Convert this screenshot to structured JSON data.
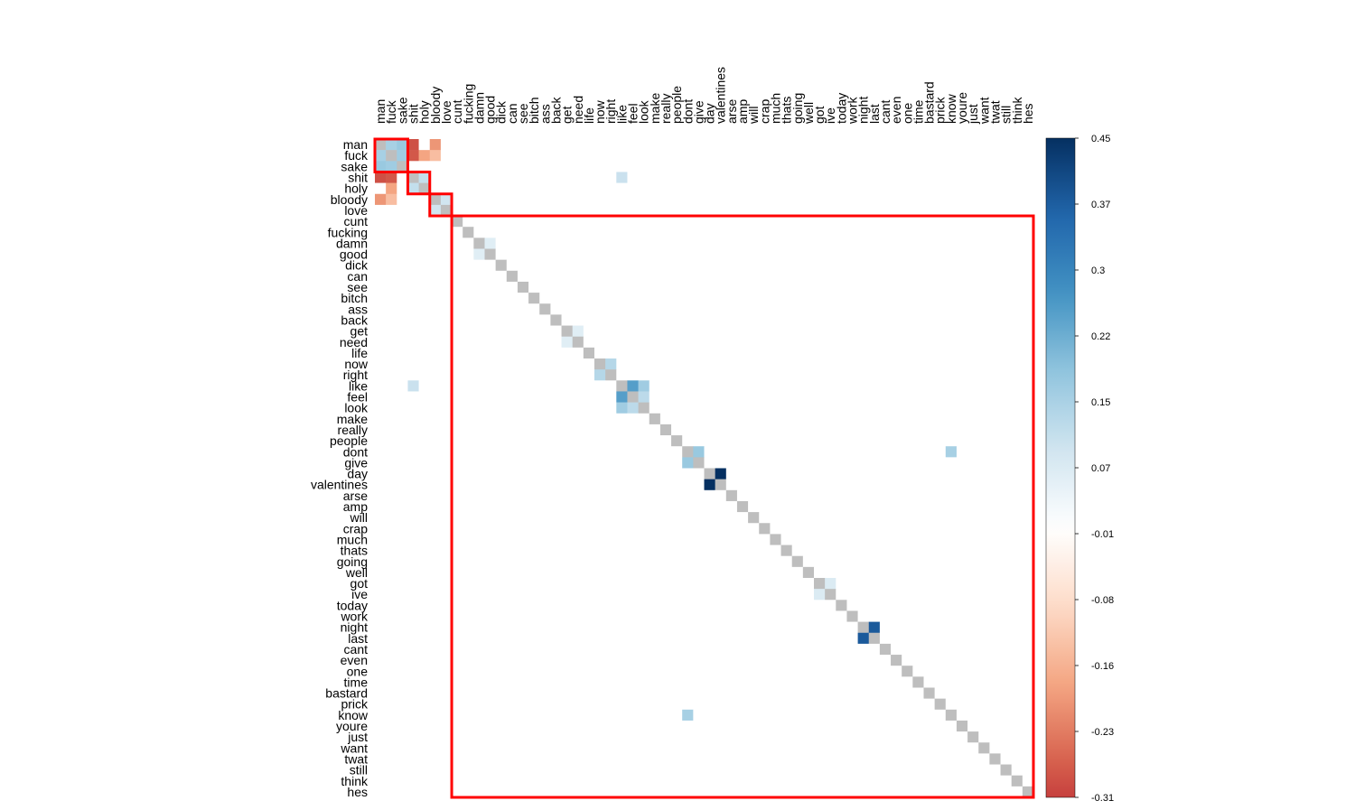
{
  "chart_data": {
    "type": "heatmap",
    "title": "",
    "labels": [
      "man",
      "fuck",
      "sake",
      "shit",
      "holy",
      "bloody",
      "love",
      "cunt",
      "fucking",
      "damn",
      "good",
      "dick",
      "can",
      "see",
      "bitch",
      "ass",
      "back",
      "get",
      "need",
      "life",
      "now",
      "right",
      "like",
      "feel",
      "look",
      "make",
      "really",
      "people",
      "dont",
      "give",
      "day",
      "valentines",
      "arse",
      "amp",
      "will",
      "crap",
      "much",
      "thats",
      "going",
      "well",
      "got",
      "ive",
      "today",
      "work",
      "night",
      "last",
      "cant",
      "even",
      "one",
      "time",
      "bastard",
      "prick",
      "know",
      "youre",
      "just",
      "want",
      "twat",
      "still",
      "think",
      "hes"
    ],
    "colorbar": {
      "min": -0.31,
      "max": 0.45,
      "tick_labels": [
        "0.45",
        "0.37",
        "0.3",
        "0.22",
        "0.15",
        "0.07",
        "-0.01",
        "-0.08",
        "-0.16",
        "-0.23",
        "-0.31"
      ],
      "colors": [
        "#67001f",
        "#b2182b",
        "#d6604d",
        "#f4a582",
        "#fddbc7",
        "#ffffff",
        "#d1e5f0",
        "#92c5de",
        "#4393c3",
        "#2166ac",
        "#053061"
      ]
    },
    "diagonal_color": "#bebebe",
    "cluster_outline_color": "#ff0000",
    "clusters": [
      {
        "start": "man",
        "end": "sake"
      },
      {
        "start": "shit",
        "end": "holy"
      },
      {
        "start": "bloody",
        "end": "love"
      },
      {
        "start": "cunt",
        "end": "hes"
      }
    ],
    "correlations": [
      {
        "a": "man",
        "b": "fuck",
        "value": 0.15
      },
      {
        "a": "man",
        "b": "sake",
        "value": 0.17
      },
      {
        "a": "fuck",
        "b": "sake",
        "value": 0.16
      },
      {
        "a": "fuck",
        "b": "shit",
        "value": -0.28
      },
      {
        "a": "man",
        "b": "shit",
        "value": -0.29
      },
      {
        "a": "fuck",
        "b": "holy",
        "value": -0.18
      },
      {
        "a": "man",
        "b": "bloody",
        "value": -0.2
      },
      {
        "a": "fuck",
        "b": "bloody",
        "value": -0.14
      },
      {
        "a": "shit",
        "b": "holy",
        "value": 0.11
      },
      {
        "a": "bloody",
        "b": "love",
        "value": 0.09
      },
      {
        "a": "like",
        "b": "feel",
        "value": 0.25
      },
      {
        "a": "like",
        "b": "look",
        "value": 0.16
      },
      {
        "a": "feel",
        "b": "look",
        "value": 0.12
      },
      {
        "a": "now",
        "b": "right",
        "value": 0.13
      },
      {
        "a": "dont",
        "b": "give",
        "value": 0.17
      },
      {
        "a": "day",
        "b": "valentines",
        "value": 0.45
      },
      {
        "a": "night",
        "b": "last",
        "value": 0.38
      },
      {
        "a": "dont",
        "b": "know",
        "value": 0.15
      },
      {
        "a": "shit",
        "b": "like",
        "value": 0.1
      },
      {
        "a": "got",
        "b": "ive",
        "value": 0.07
      },
      {
        "a": "good",
        "b": "damn",
        "value": 0.06
      },
      {
        "a": "get",
        "b": "need",
        "value": 0.06
      }
    ],
    "pair_values_are_estimates": true
  }
}
